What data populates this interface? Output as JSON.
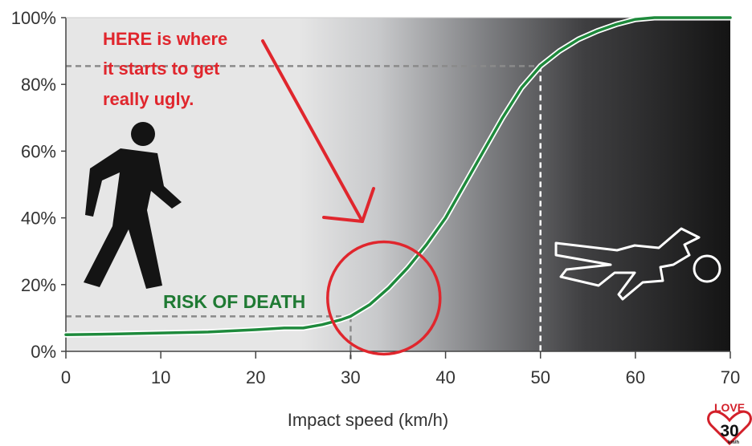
{
  "chart_data": {
    "type": "line",
    "xlabel": "Impact speed (km/h)",
    "ylabel": "",
    "xlim": [
      0,
      70
    ],
    "ylim": [
      0,
      100
    ],
    "x_ticks": [
      "0",
      "10",
      "20",
      "30",
      "40",
      "50",
      "60",
      "70"
    ],
    "y_ticks": [
      "0%",
      "20%",
      "40%",
      "60%",
      "80%",
      "100%"
    ],
    "series": [
      {
        "x": [
          0,
          5,
          10,
          15,
          20,
          23,
          25,
          27,
          29,
          30,
          32,
          34,
          36,
          38,
          40,
          42,
          44,
          46,
          48,
          50,
          52,
          54,
          56,
          58,
          60,
          62,
          65,
          70
        ],
        "y": [
          5,
          5.2,
          5.5,
          5.8,
          6.5,
          7,
          7,
          8,
          9.5,
          10.5,
          14,
          19,
          25,
          32,
          40,
          50,
          60,
          70,
          79,
          85.5,
          90,
          93.5,
          96,
          98,
          99.5,
          100,
          100,
          100
        ]
      }
    ],
    "reference_lines": [
      {
        "x": 30,
        "y": 10.5
      },
      {
        "x": 50,
        "y": 85.5
      }
    ],
    "annotations": [
      {
        "text": "HERE is where",
        "color": "#e0262d"
      },
      {
        "text": "it starts to get",
        "color": "#e0262d"
      },
      {
        "text": "really ugly.",
        "color": "#e0262d"
      },
      {
        "text": "RISK OF DEATH",
        "color": "#1f7a33"
      }
    ],
    "highlight_circle": {
      "x": 33.5,
      "y": 16
    },
    "grid": false,
    "colors": {
      "line": "#1e8a3c",
      "annotation": "#e0262d",
      "risk_label": "#1f7a33"
    }
  },
  "logo": {
    "line1": "LOVE",
    "line2": "30",
    "line3": "km/h"
  }
}
